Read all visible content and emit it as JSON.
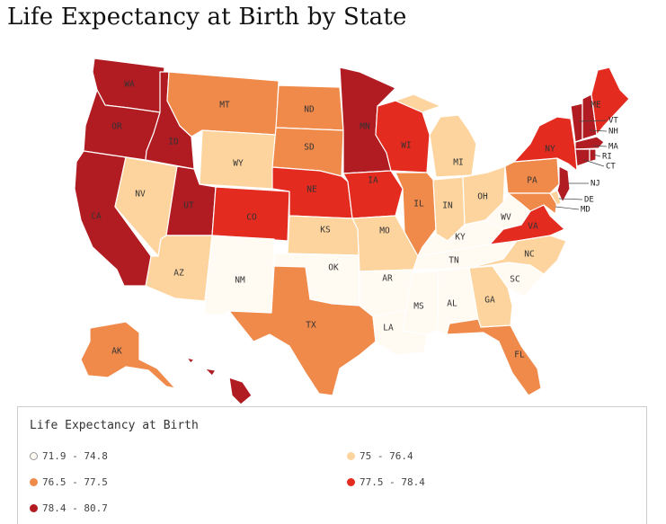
{
  "title": "Life Expectancy at Birth by State",
  "legend": {
    "title": "Life Expectancy at Birth",
    "bins": [
      {
        "label": "71.9 - 74.8",
        "color": "#fffaf2"
      },
      {
        "label": "75 - 76.4",
        "color": "#fdd49e"
      },
      {
        "label": "76.5 - 77.5",
        "color": "#f08a4b"
      },
      {
        "label": "77.5 - 78.4",
        "color": "#e32b20"
      },
      {
        "label": "78.4 - 80.7",
        "color": "#b11b22"
      }
    ]
  },
  "states": {
    "WA": 4,
    "OR": 4,
    "CA": 4,
    "ID": 4,
    "UT": 4,
    "MN": 4,
    "HI": 4,
    "VT": 4,
    "NH": 4,
    "MA": 4,
    "CT": 4,
    "RI": 4,
    "NJ": 4,
    "ME": 3,
    "CO": 3,
    "NE": 3,
    "IA": 3,
    "WI": 3,
    "NY": 3,
    "VA": 3,
    "MT": 2,
    "ND": 2,
    "SD": 2,
    "TX": 2,
    "IL": 2,
    "PA": 2,
    "FL": 2,
    "AK": 2,
    "MD": 2,
    "WY": 1,
    "NV": 1,
    "AZ": 1,
    "KS": 1,
    "MO": 1,
    "MI": 1,
    "IN": 1,
    "OH": 1,
    "NC": 1,
    "GA": 1,
    "DE": 1,
    "NM": 0,
    "OK": 0,
    "AR": 0,
    "LA": 0,
    "MS": 0,
    "AL": 0,
    "TN": 0,
    "KY": 0,
    "WV": 0,
    "SC": 0
  }
}
